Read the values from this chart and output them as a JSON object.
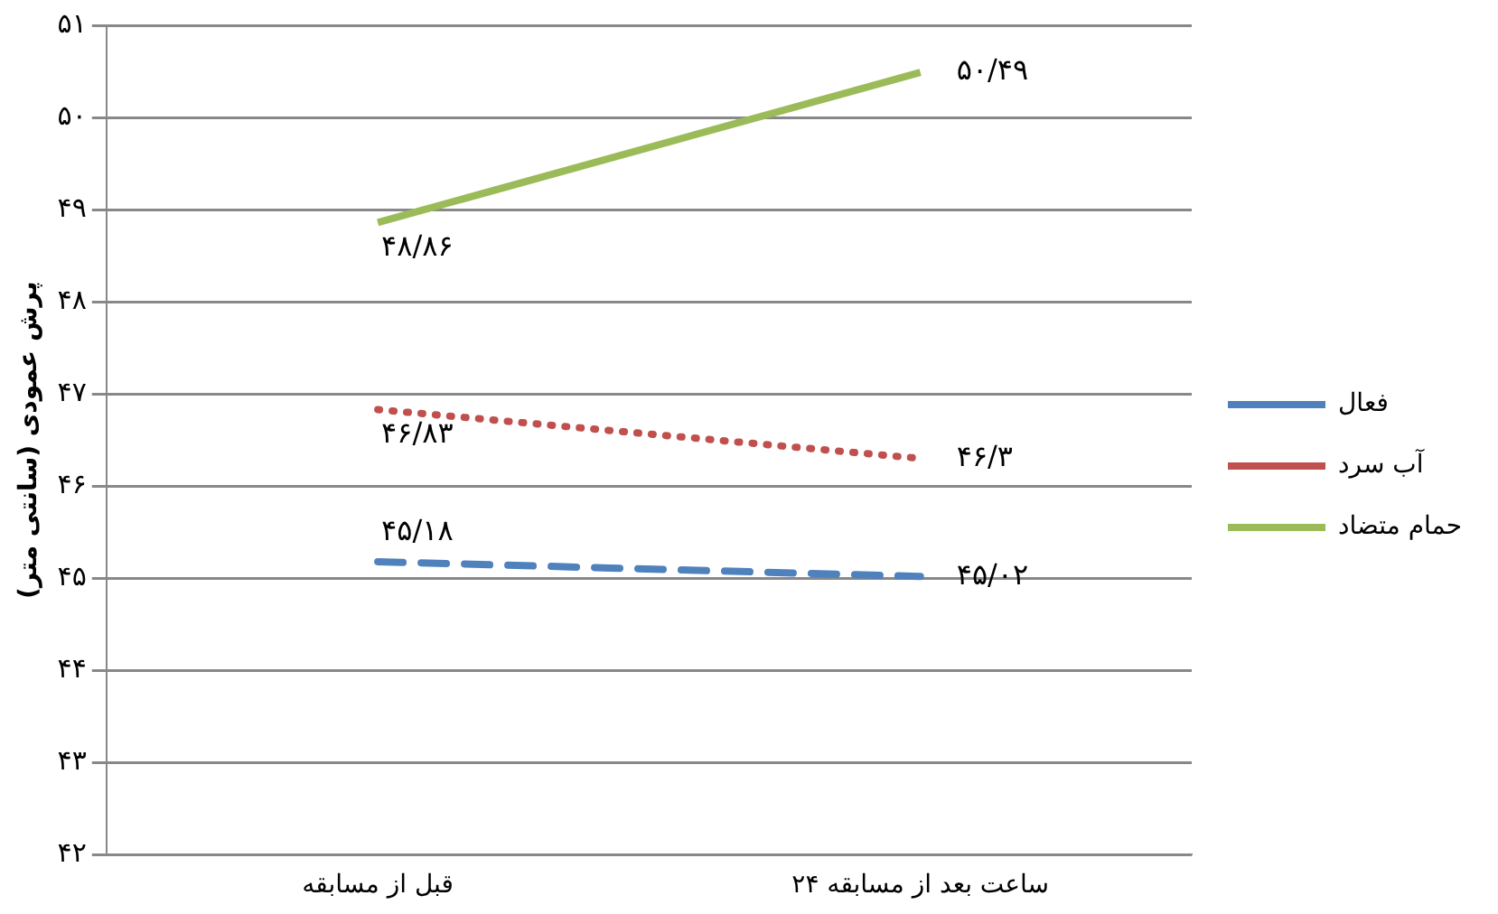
{
  "chart_data": {
    "type": "line",
    "ylabel": "پرش عمودی (سانتی متر)",
    "categories": [
      "قبل از مسابقه",
      "۲۴ ساعت بعد از مسابقه"
    ],
    "series": [
      {
        "name": "فعال",
        "color": "#4f81bd",
        "line_style": "dashed",
        "values": [
          45.18,
          45.02
        ],
        "value_labels": [
          "۴۵/۱۸",
          "۴۵/۰۲"
        ]
      },
      {
        "name": "آب سرد",
        "color": "#c0504d",
        "line_style": "dotted",
        "values": [
          46.83,
          46.3
        ],
        "value_labels": [
          "۴۶/۸۳",
          "۴۶/۳"
        ]
      },
      {
        "name": "حمام متضاد",
        "color": "#9bbb59",
        "line_style": "solid",
        "values": [
          48.86,
          50.49
        ],
        "value_labels": [
          "۴۸/۸۶",
          "۵۰/۴۹"
        ]
      }
    ],
    "ylim": [
      42,
      51
    ],
    "yticks": [
      {
        "value": 42,
        "label": "۴۲"
      },
      {
        "value": 43,
        "label": "۴۳"
      },
      {
        "value": 44,
        "label": "۴۴"
      },
      {
        "value": 45,
        "label": "۴۵"
      },
      {
        "value": 46,
        "label": "۴۶"
      },
      {
        "value": 47,
        "label": "۴۷"
      },
      {
        "value": 48,
        "label": "۴۸"
      },
      {
        "value": 49,
        "label": "۴۹"
      },
      {
        "value": 50,
        "label": "۵۰"
      },
      {
        "value": 51,
        "label": "۵۱"
      }
    ],
    "grid": "y",
    "legend": "right",
    "marker": "none"
  }
}
